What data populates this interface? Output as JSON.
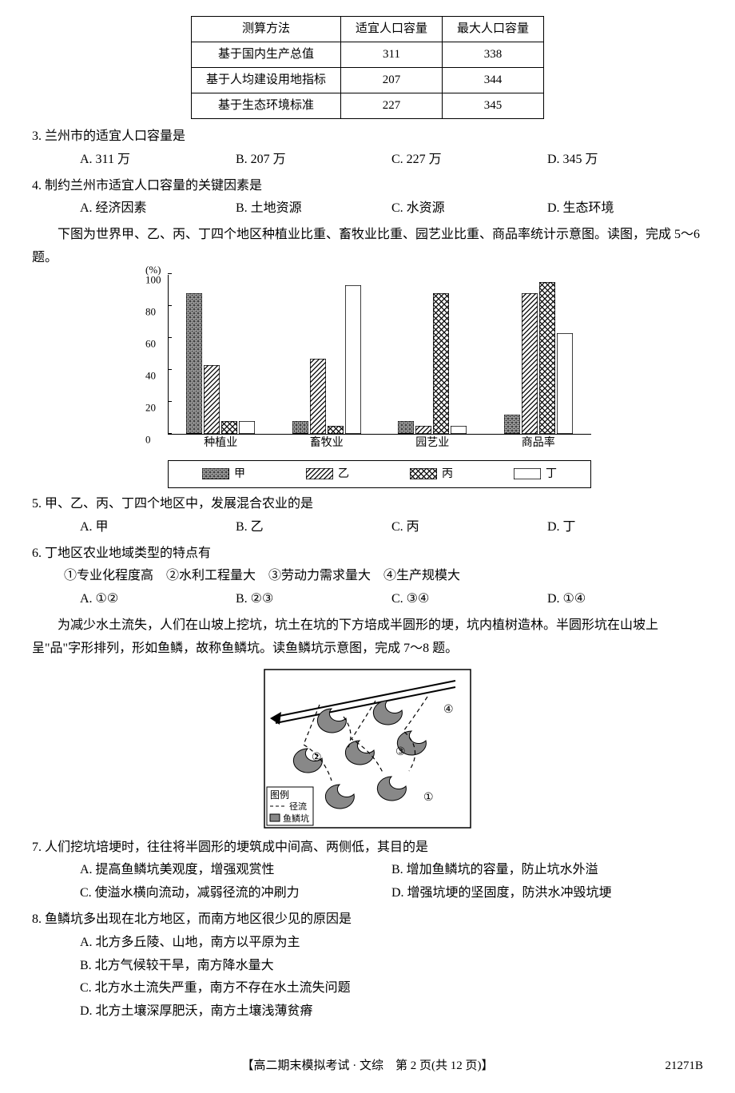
{
  "table": {
    "headers": [
      "测算方法",
      "适宜人口容量",
      "最大人口容量"
    ],
    "rows": [
      [
        "基于国内生产总值",
        "311",
        "338"
      ],
      [
        "基于人均建设用地指标",
        "207",
        "344"
      ],
      [
        "基于生态环境标准",
        "227",
        "345"
      ]
    ]
  },
  "q3": {
    "text": "3. 兰州市的适宜人口容量是",
    "opts": [
      "A. 311 万",
      "B. 207 万",
      "C. 227 万",
      "D. 345 万"
    ]
  },
  "q4": {
    "text": "4. 制约兰州市适宜人口容量的关键因素是",
    "opts": [
      "A. 经济因素",
      "B. 土地资源",
      "C. 水资源",
      "D. 生态环境"
    ]
  },
  "passage1": "下图为世界甲、乙、丙、丁四个地区种植业比重、畜牧业比重、园艺业比重、商品率统计示意图。读图，完成 5～6 题。",
  "chart": {
    "y_unit": "(%)",
    "y_max": 100,
    "y_ticks": [
      0,
      20,
      40,
      60,
      80,
      100
    ],
    "categories": [
      "种植业",
      "畜牧业",
      "园艺业",
      "商品率"
    ],
    "series": [
      {
        "name": "甲",
        "pattern": "grid",
        "values": [
          88,
          8,
          8,
          12
        ]
      },
      {
        "name": "乙",
        "pattern": "diag",
        "values": [
          43,
          47,
          5,
          88
        ]
      },
      {
        "name": "丙",
        "pattern": "cross",
        "values": [
          8,
          5,
          88,
          95
        ]
      },
      {
        "name": "丁",
        "pattern": "blank",
        "values": [
          8,
          93,
          5,
          63
        ]
      }
    ],
    "legend": [
      "甲",
      "乙",
      "丙",
      "丁"
    ]
  },
  "q5": {
    "text": "5. 甲、乙、丙、丁四个地区中，发展混合农业的是",
    "opts": [
      "A. 甲",
      "B. 乙",
      "C. 丙",
      "D. 丁"
    ]
  },
  "q6": {
    "text": "6. 丁地区农业地域类型的特点有",
    "sub": "①专业化程度高　②水利工程量大　③劳动力需求量大　④生产规模大",
    "opts": [
      "A. ①②",
      "B. ②③",
      "C. ③④",
      "D. ①④"
    ]
  },
  "passage2": "为减少水土流失，人们在山坡上挖坑，坑土在坑的下方培成半圆形的埂，坑内植树造林。半圆形坑在山坡上呈\"品\"字形排列，形如鱼鳞，故称鱼鳞坑。读鱼鳞坑示意图，完成 7～8 题。",
  "fig2": {
    "legend_title": "图例",
    "legend_items": [
      "径流",
      "鱼鳞坑"
    ],
    "labels": [
      "①",
      "②",
      "③",
      "④"
    ]
  },
  "q7": {
    "text": "7. 人们挖坑培埂时，往往将半圆形的埂筑成中间高、两侧低，其目的是",
    "opts": [
      "A. 提高鱼鳞坑美观度，增强观赏性",
      "B. 增加鱼鳞坑的容量，防止坑水外溢",
      "C. 使溢水横向流动，减弱径流的冲刷力",
      "D. 增强坑埂的坚固度，防洪水冲毁坑埂"
    ]
  },
  "q8": {
    "text": "8. 鱼鳞坑多出现在北方地区，而南方地区很少见的原因是",
    "opts": [
      "A. 北方多丘陵、山地，南方以平原为主",
      "B. 北方气候较干旱，南方降水量大",
      "C. 北方水土流失严重，南方不存在水土流失问题",
      "D. 北方土壤深厚肥沃，南方土壤浅薄贫瘠"
    ]
  },
  "footer": {
    "main": "【高二期末模拟考试 · 文综　第 2 页(共 12 页)】",
    "code": "21271B"
  },
  "patterns": {
    "grid_id": "p-grid",
    "diag_id": "p-diag",
    "cross_id": "p-cross"
  }
}
